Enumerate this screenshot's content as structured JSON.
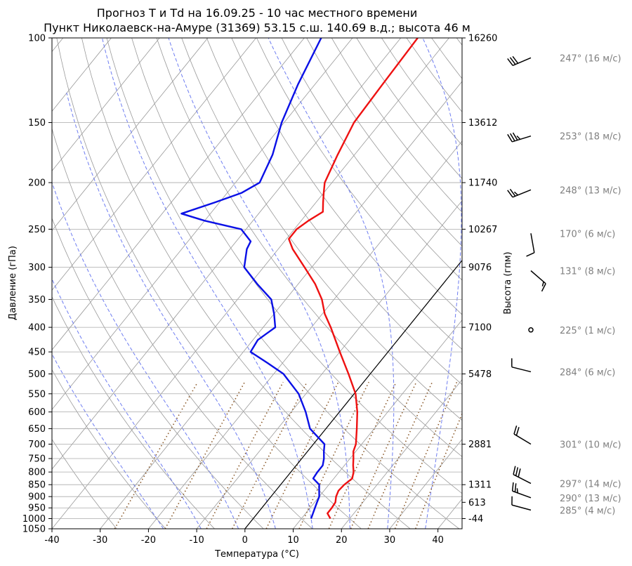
{
  "chart_data": {
    "type": "line",
    "title": "Прогноз T и Td на 16.09.25 - 10 час местного времени",
    "subtitle": "Пункт Николаевск-на-Амуре (31369) 53.15 с.ш. 140.69 в.д.; высота 46 м",
    "xlabel": "Температура (°C)",
    "ylabel": "Давление (гПа)",
    "y2label": "Высота (гпм)",
    "xlim": [
      -40,
      45
    ],
    "ylim": [
      1050,
      100
    ],
    "yscale": "log",
    "grid": true,
    "x_ticks": [
      "-40",
      "-30",
      "-20",
      "-10",
      "0",
      "10",
      "20",
      "30",
      "40"
    ],
    "y_ticks": [
      "100",
      "150",
      "200",
      "250",
      "300",
      "350",
      "400",
      "450",
      "500",
      "550",
      "600",
      "650",
      "700",
      "750",
      "800",
      "850",
      "900",
      "950",
      "1000",
      "1050"
    ],
    "heights": [
      {
        "p": 100,
        "label": "16260"
      },
      {
        "p": 150,
        "label": "13612"
      },
      {
        "p": 200,
        "label": "11740"
      },
      {
        "p": 250,
        "label": "10267"
      },
      {
        "p": 300,
        "label": "9076"
      },
      {
        "p": 400,
        "label": "7100"
      },
      {
        "p": 500,
        "label": "5478"
      },
      {
        "p": 700,
        "label": "2881"
      },
      {
        "p": 850,
        "label": "1311"
      },
      {
        "p": 925,
        "label": "613"
      },
      {
        "p": 1000,
        "label": "-44"
      }
    ],
    "temperature": [
      {
        "p": 1000,
        "t": 16.0
      },
      {
        "p": 975,
        "t": 14.5
      },
      {
        "p": 950,
        "t": 14.5
      },
      {
        "p": 925,
        "t": 14.3
      },
      {
        "p": 900,
        "t": 13.5
      },
      {
        "p": 875,
        "t": 13.0
      },
      {
        "p": 850,
        "t": 13.2
      },
      {
        "p": 825,
        "t": 13.8
      },
      {
        "p": 800,
        "t": 13.0
      },
      {
        "p": 775,
        "t": 11.8
      },
      {
        "p": 750,
        "t": 10.7
      },
      {
        "p": 725,
        "t": 9.5
      },
      {
        "p": 700,
        "t": 8.8
      },
      {
        "p": 650,
        "t": 6.4
      },
      {
        "p": 600,
        "t": 3.7
      },
      {
        "p": 550,
        "t": 0.3
      },
      {
        "p": 500,
        "t": -4.5
      },
      {
        "p": 450,
        "t": -10.0
      },
      {
        "p": 400,
        "t": -16.0
      },
      {
        "p": 375,
        "t": -19.5
      },
      {
        "p": 350,
        "t": -22.5
      },
      {
        "p": 325,
        "t": -26.5
      },
      {
        "p": 300,
        "t": -31.5
      },
      {
        "p": 275,
        "t": -37.0
      },
      {
        "p": 262,
        "t": -39.5
      },
      {
        "p": 250,
        "t": -39.5
      },
      {
        "p": 240,
        "t": -38.5
      },
      {
        "p": 230,
        "t": -37.0
      },
      {
        "p": 220,
        "t": -38.5
      },
      {
        "p": 210,
        "t": -40.0
      },
      {
        "p": 200,
        "t": -41.5
      },
      {
        "p": 175,
        "t": -43.5
      },
      {
        "p": 150,
        "t": -45.5
      },
      {
        "p": 125,
        "t": -46.0
      },
      {
        "p": 100,
        "t": -46.5
      }
    ],
    "dewpoint": [
      {
        "p": 1000,
        "t": 12.0
      },
      {
        "p": 975,
        "t": 11.5
      },
      {
        "p": 950,
        "t": 11.0
      },
      {
        "p": 925,
        "t": 10.5
      },
      {
        "p": 900,
        "t": 10.0
      },
      {
        "p": 875,
        "t": 9.0
      },
      {
        "p": 850,
        "t": 8.0
      },
      {
        "p": 825,
        "t": 5.7
      },
      {
        "p": 800,
        "t": 5.5
      },
      {
        "p": 775,
        "t": 5.5
      },
      {
        "p": 750,
        "t": 4.6
      },
      {
        "p": 725,
        "t": 3.4
      },
      {
        "p": 700,
        "t": 2.3
      },
      {
        "p": 650,
        "t": -3.3
      },
      {
        "p": 600,
        "t": -7.0
      },
      {
        "p": 550,
        "t": -11.5
      },
      {
        "p": 500,
        "t": -18.0
      },
      {
        "p": 475,
        "t": -23.0
      },
      {
        "p": 450,
        "t": -28.5
      },
      {
        "p": 425,
        "t": -29.0
      },
      {
        "p": 400,
        "t": -27.5
      },
      {
        "p": 375,
        "t": -30.0
      },
      {
        "p": 350,
        "t": -33.0
      },
      {
        "p": 325,
        "t": -38.5
      },
      {
        "p": 300,
        "t": -44.0
      },
      {
        "p": 275,
        "t": -46.5
      },
      {
        "p": 265,
        "t": -47.0
      },
      {
        "p": 250,
        "t": -51.0
      },
      {
        "p": 240,
        "t": -60.0
      },
      {
        "p": 232,
        "t": -66.0
      },
      {
        "p": 220,
        "t": -61.0
      },
      {
        "p": 210,
        "t": -57.0
      },
      {
        "p": 200,
        "t": -55.0
      },
      {
        "p": 175,
        "t": -57.0
      },
      {
        "p": 150,
        "t": -60.5
      },
      {
        "p": 125,
        "t": -63.5
      },
      {
        "p": 100,
        "t": -66.5
      }
    ],
    "wind": [
      {
        "p": 110,
        "label": "247° (16 м/с)"
      },
      {
        "p": 160,
        "label": "253° (18 м/с)"
      },
      {
        "p": 207,
        "label": "248° (13 м/с)"
      },
      {
        "p": 255,
        "label": "170° (6 м/с)"
      },
      {
        "p": 305,
        "label": "131° (8 м/с)"
      },
      {
        "p": 405,
        "label": "225° (1 м/с)"
      },
      {
        "p": 495,
        "label": "284° (6 м/с)"
      },
      {
        "p": 700,
        "label": "301° (10 м/с)"
      },
      {
        "p": 845,
        "label": "297° (14 м/с)"
      },
      {
        "p": 905,
        "label": "290° (13 м/с)"
      },
      {
        "p": 960,
        "label": "285° (4 м/с)"
      }
    ]
  }
}
